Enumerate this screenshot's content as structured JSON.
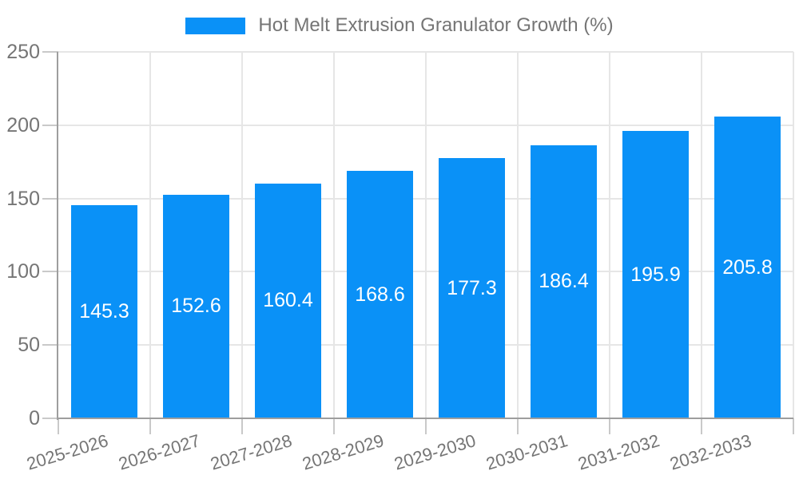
{
  "chart_data": {
    "type": "bar",
    "legend": "Hot Melt Extrusion Granulator Growth (%)",
    "legend_position": "top-center",
    "categories": [
      "2025-2026",
      "2026-2027",
      "2027-2028",
      "2028-2029",
      "2029-2030",
      "2030-2031",
      "2031-2032",
      "2032-2033"
    ],
    "values": [
      145.3,
      152.6,
      160.4,
      168.6,
      177.3,
      186.4,
      195.9,
      205.8
    ],
    "bar_value_labels": [
      "145.3",
      "152.6",
      "160.4",
      "168.6",
      "177.3",
      "186.4",
      "195.9",
      "205.8"
    ],
    "title": "",
    "xlabel": "",
    "ylabel": "",
    "ylim": [
      0,
      250
    ],
    "yticks": [
      0,
      50,
      100,
      150,
      200,
      250
    ],
    "grid": true,
    "x_label_rotation_deg": -17,
    "bar_labels_inside": true
  },
  "colors": {
    "bar": "#0A91F7",
    "bar_label_text": "#FFFFFF",
    "axis_line": "#9E9E9E",
    "gridline": "#E6E6E6",
    "tick": "#C9C9C9",
    "label_text": "#757575",
    "background": "#FFFFFF"
  }
}
